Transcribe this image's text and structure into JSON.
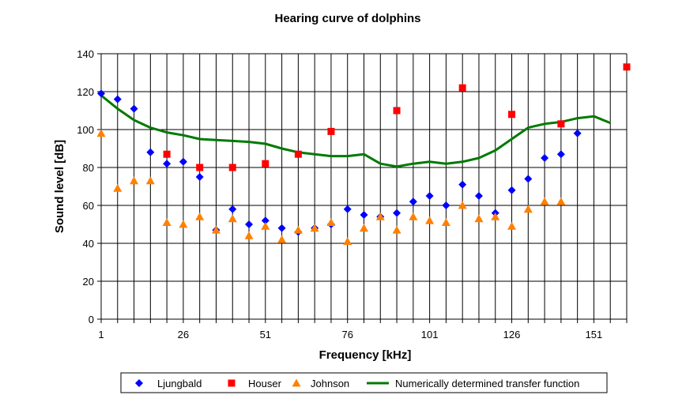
{
  "chart_data": {
    "type": "scatter",
    "title": "Hearing curve of dolphins",
    "xlabel": "Frequency [kHz]",
    "ylabel": "Sound level [dB]",
    "xlim": [
      1,
      161
    ],
    "ylim": [
      0,
      140
    ],
    "x_ticks": [
      1,
      26,
      51,
      76,
      101,
      126,
      151
    ],
    "y_ticks": [
      0,
      20,
      40,
      60,
      80,
      100,
      120,
      140
    ],
    "grid": "vertical and horizontal lines",
    "legend_position": "bottom",
    "series": [
      {
        "name": "Ljungbald",
        "marker": "diamond",
        "color": "#0000ff",
        "points": [
          [
            1,
            119
          ],
          [
            6,
            116
          ],
          [
            11,
            111
          ],
          [
            16,
            88
          ],
          [
            21,
            82
          ],
          [
            26,
            83
          ],
          [
            31,
            75
          ],
          [
            36,
            47
          ],
          [
            41,
            58
          ],
          [
            46,
            50
          ],
          [
            51,
            52
          ],
          [
            56,
            48
          ],
          [
            61,
            46
          ],
          [
            66,
            48
          ],
          [
            71,
            50
          ],
          [
            76,
            58
          ],
          [
            81,
            55
          ],
          [
            86,
            54
          ],
          [
            91,
            56
          ],
          [
            96,
            62
          ],
          [
            101,
            65
          ],
          [
            106,
            60
          ],
          [
            111,
            71
          ],
          [
            116,
            65
          ],
          [
            121,
            56
          ],
          [
            126,
            68
          ],
          [
            131,
            74
          ],
          [
            136,
            85
          ],
          [
            141,
            87
          ],
          [
            146,
            98
          ]
        ]
      },
      {
        "name": "Houser",
        "marker": "square",
        "color": "#ff0000",
        "points": [
          [
            21,
            87
          ],
          [
            31,
            80
          ],
          [
            41,
            80
          ],
          [
            51,
            82
          ],
          [
            61,
            87
          ],
          [
            71,
            99
          ],
          [
            91,
            110
          ],
          [
            111,
            122
          ],
          [
            126,
            108
          ],
          [
            141,
            103
          ],
          [
            161,
            133
          ]
        ]
      },
      {
        "name": "Johnson",
        "marker": "triangle",
        "color": "#ff8000",
        "points": [
          [
            1,
            98
          ],
          [
            6,
            69
          ],
          [
            11,
            73
          ],
          [
            16,
            73
          ],
          [
            21,
            51
          ],
          [
            26,
            50
          ],
          [
            31,
            54
          ],
          [
            36,
            47
          ],
          [
            41,
            53
          ],
          [
            46,
            44
          ],
          [
            51,
            49
          ],
          [
            56,
            42
          ],
          [
            61,
            47
          ],
          [
            66,
            48
          ],
          [
            71,
            51
          ],
          [
            76,
            41
          ],
          [
            81,
            48
          ],
          [
            86,
            54
          ],
          [
            91,
            47
          ],
          [
            96,
            54
          ],
          [
            101,
            52
          ],
          [
            106,
            51
          ],
          [
            111,
            60
          ],
          [
            116,
            53
          ],
          [
            121,
            54
          ],
          [
            126,
            49
          ],
          [
            131,
            58
          ],
          [
            136,
            62
          ],
          [
            141,
            62
          ]
        ]
      },
      {
        "name": "Numerically determined transfer function",
        "marker": "line",
        "color": "#007a00",
        "points": [
          [
            1,
            118
          ],
          [
            6,
            111
          ],
          [
            11,
            105
          ],
          [
            16,
            101
          ],
          [
            21,
            98.5
          ],
          [
            26,
            97
          ],
          [
            31,
            95
          ],
          [
            36,
            94.5
          ],
          [
            41,
            94
          ],
          [
            46,
            93.5
          ],
          [
            51,
            92.5
          ],
          [
            56,
            90
          ],
          [
            61,
            88
          ],
          [
            66,
            87
          ],
          [
            71,
            86
          ],
          [
            76,
            86
          ],
          [
            81,
            87
          ],
          [
            86,
            82
          ],
          [
            91,
            80.5
          ],
          [
            96,
            82
          ],
          [
            101,
            83
          ],
          [
            106,
            82
          ],
          [
            111,
            83
          ],
          [
            116,
            85
          ],
          [
            121,
            89
          ],
          [
            126,
            95
          ],
          [
            131,
            101
          ],
          [
            136,
            103
          ],
          [
            141,
            104
          ],
          [
            146,
            106
          ],
          [
            151,
            107
          ],
          [
            156,
            103.5
          ]
        ]
      }
    ]
  }
}
